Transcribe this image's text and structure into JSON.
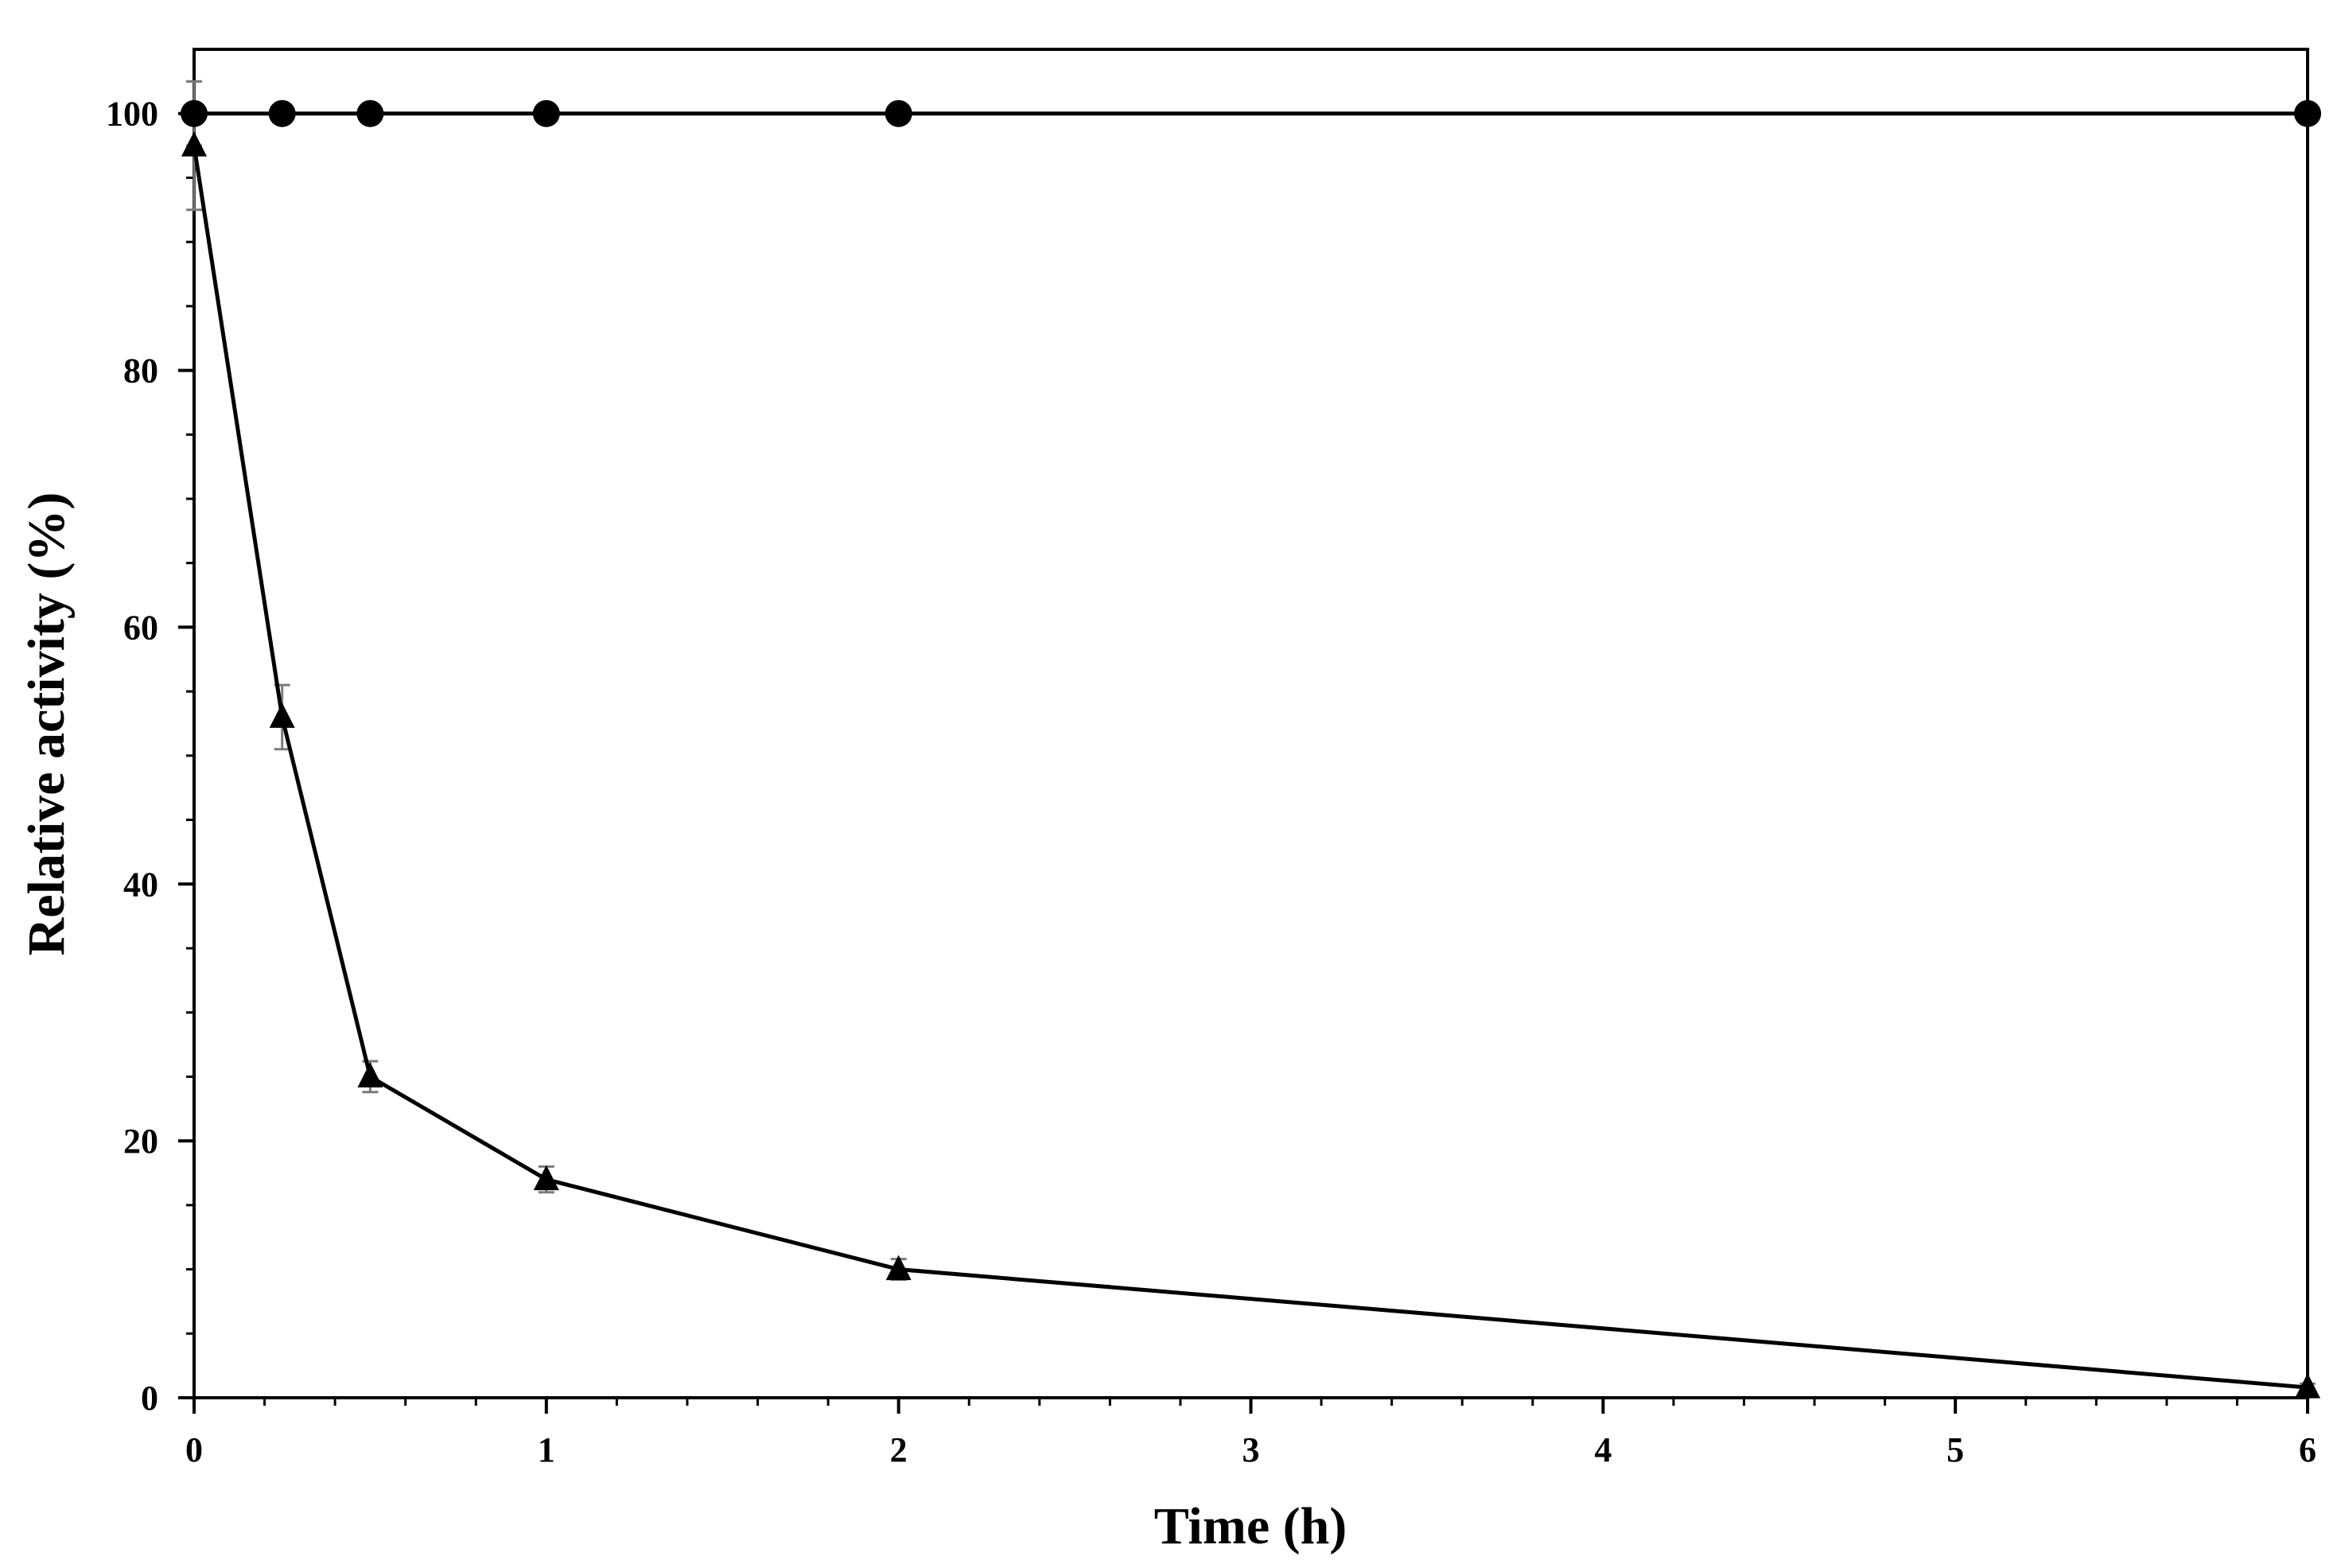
{
  "chart_data": {
    "type": "line",
    "title": "",
    "xlabel": "Time (h)",
    "ylabel": "Relative activity (%)",
    "xlim": [
      0,
      6
    ],
    "ylim": [
      0,
      105
    ],
    "x_ticks": [
      0,
      1,
      2,
      3,
      4,
      5,
      6
    ],
    "x_tick_labels": [
      "0",
      "1",
      "2",
      "3",
      "4",
      "5",
      "6"
    ],
    "x_minor_step": 0.2,
    "y_ticks": [
      0,
      20,
      40,
      60,
      80,
      100
    ],
    "y_tick_labels": [
      "0",
      "20",
      "40",
      "60",
      "80",
      "100"
    ],
    "y_minor_step": 5,
    "grid": false,
    "legend": "none",
    "series": [
      {
        "marker": "circle",
        "color": "#000000",
        "x": [
          0,
          0.25,
          0.5,
          1,
          2,
          6
        ],
        "y": [
          100,
          100,
          100,
          100,
          100,
          100
        ],
        "error": [
          2.5,
          0,
          0,
          0,
          0,
          0
        ]
      },
      {
        "marker": "triangle",
        "color": "#000000",
        "x": [
          0,
          0.25,
          0.5,
          1,
          2,
          6
        ],
        "y": [
          97.5,
          53,
          25,
          17,
          10,
          0.8
        ],
        "error": [
          5,
          2.5,
          1.2,
          1,
          0.8,
          0.3
        ]
      }
    ]
  }
}
